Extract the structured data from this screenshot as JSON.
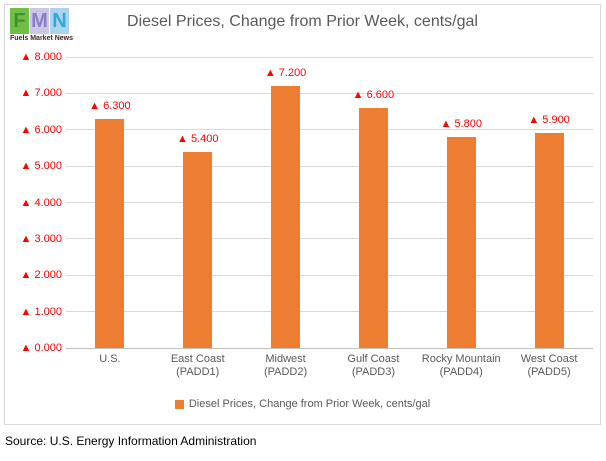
{
  "logo": {
    "letters": [
      "F",
      "M",
      "N"
    ],
    "caption": "Fuels Market News"
  },
  "chart_data": {
    "type": "bar",
    "title": "Diesel Prices, Change from Prior Week, cents/gal",
    "categories": [
      "U.S.",
      "East Coast\n(PADD1)",
      "Midwest\n(PADD2)",
      "Gulf Coast\n(PADD3)",
      "Rocky Mountain\n(PADD4)",
      "West Coast\n(PADD5)"
    ],
    "values": [
      6.3,
      5.4,
      7.2,
      6.6,
      5.8,
      5.9
    ],
    "data_labels": [
      "6.300",
      "5.400",
      "7.200",
      "6.600",
      "5.800",
      "5.900"
    ],
    "label_prefix": "▲",
    "y_ticks": [
      {
        "value": 0,
        "label": "0.000"
      },
      {
        "value": 1,
        "label": "1.000"
      },
      {
        "value": 2,
        "label": "2.000"
      },
      {
        "value": 3,
        "label": "3.000"
      },
      {
        "value": 4,
        "label": "4.000"
      },
      {
        "value": 5,
        "label": "5.000"
      },
      {
        "value": 6,
        "label": "6.000"
      },
      {
        "value": 7,
        "label": "7.000"
      },
      {
        "value": 8,
        "label": "8.000"
      }
    ],
    "ylim": [
      0,
      8
    ],
    "grid": true,
    "legend": {
      "position": "bottom",
      "label": "Diesel Prices, Change from Prior Week, cents/gal"
    },
    "colors": {
      "bar": "#ED7D31",
      "value_text": "#FF0000",
      "axis_text": "#595959",
      "gridline": "#D9D9D9",
      "axis_line": "#BFBFBF"
    }
  },
  "footer": {
    "source": "Source: U.S. Energy Information Administration"
  }
}
